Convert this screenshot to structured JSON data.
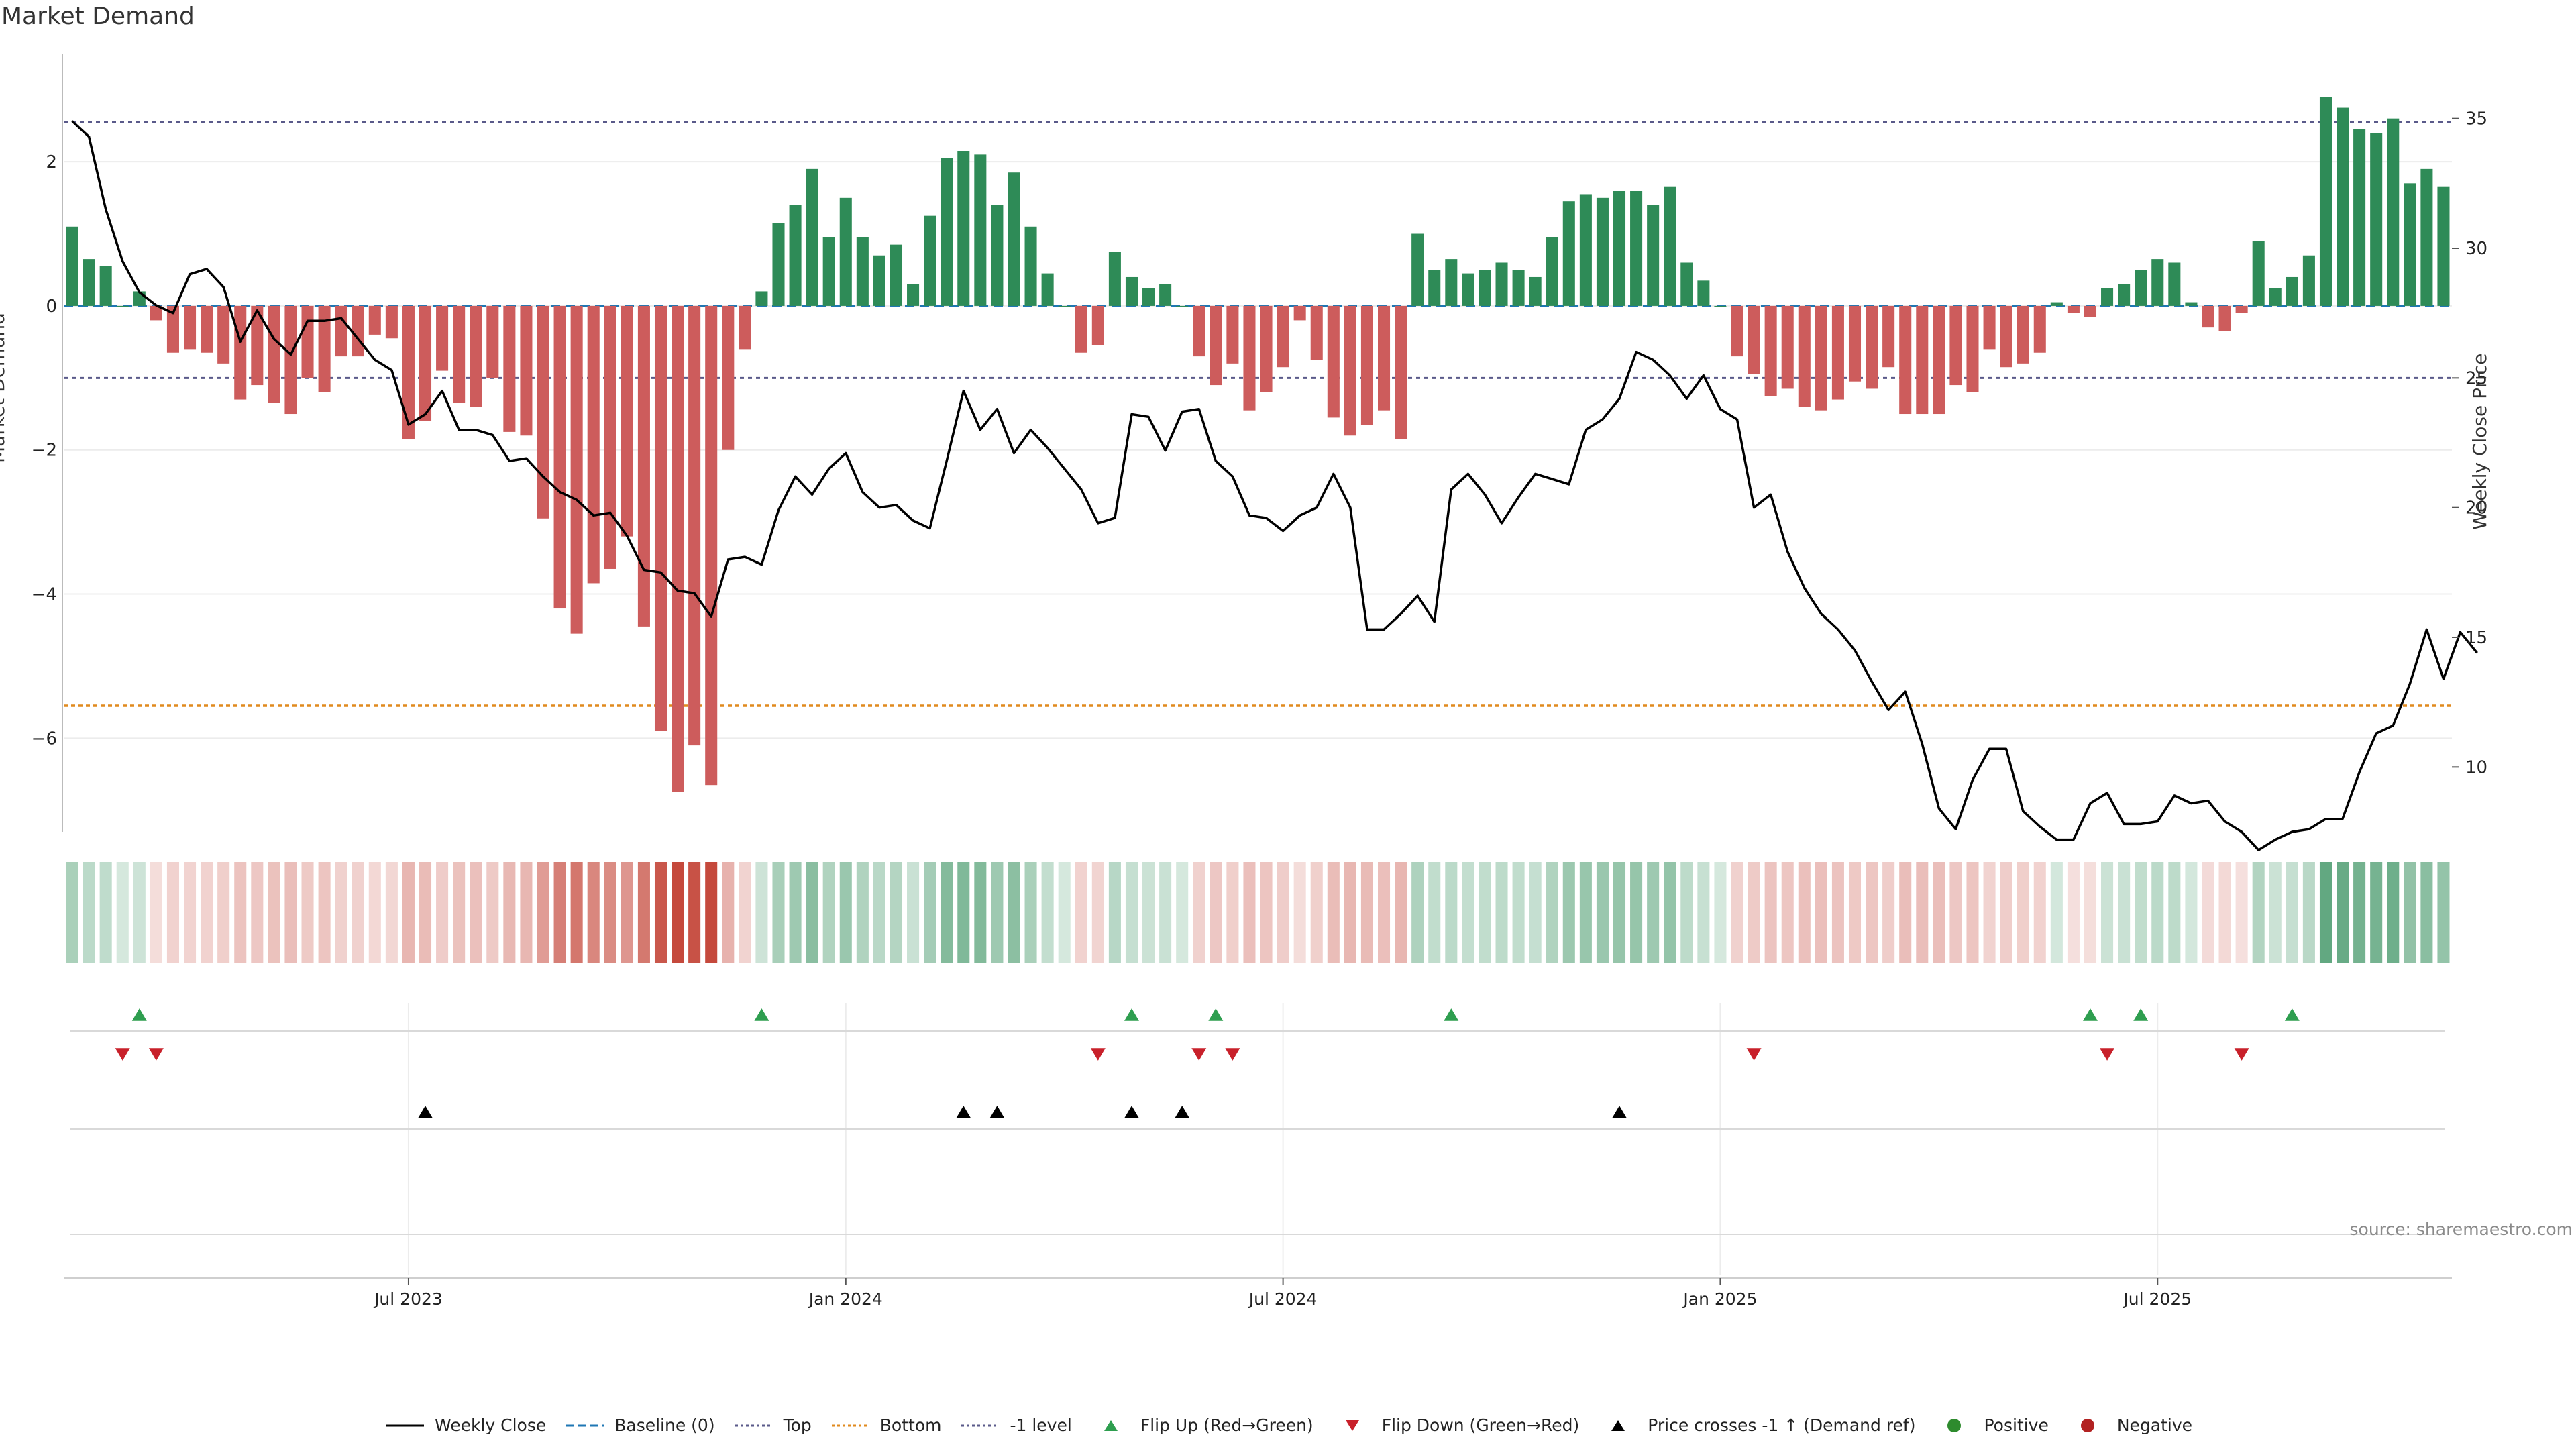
{
  "title": "Market Demand",
  "source_label": "source: sharemaestro.com",
  "colors": {
    "positive": "#2e8b57",
    "negative": "#cd5c5c",
    "line": "#000000",
    "top": "#5a5a8a",
    "bottom": "#e08a1e",
    "flip_up": "#2e9e4f",
    "flip_down": "#c8202a",
    "cross": "#000000"
  },
  "legend": [
    {
      "label": "Weekly Close",
      "kind": "line-solid",
      "color": "#000000"
    },
    {
      "label": "Baseline (0)",
      "kind": "line-dash",
      "color": "#1f77b4"
    },
    {
      "label": "Top",
      "kind": "line-dot",
      "color": "#5a5a8a"
    },
    {
      "label": "Bottom",
      "kind": "line-dot",
      "color": "#e08a1e"
    },
    {
      "label": "-1 level",
      "kind": "line-dot",
      "color": "#5a5a8a"
    },
    {
      "label": "Flip Up (Red→Green)",
      "kind": "tri-up",
      "color": "#2e9e4f"
    },
    {
      "label": "Flip Down (Green→Red)",
      "kind": "tri-down",
      "color": "#c8202a"
    },
    {
      "label": "Price crosses -1 ↑ (Demand ref)",
      "kind": "tri-up",
      "color": "#000000"
    },
    {
      "label": "Positive",
      "kind": "dot",
      "color": "#2e8b2e"
    },
    {
      "label": "Negative",
      "kind": "dot",
      "color": "#b22222"
    }
  ],
  "chart_data": {
    "type": "bar",
    "title": "Market Demand",
    "ylabel": "Market Demand",
    "y2label": "Weekly Close Price",
    "ylim": [
      -7.3,
      3.5
    ],
    "y2lim": [
      7.5,
      37.5
    ],
    "yticks": [
      2,
      0,
      -2,
      -4,
      -6
    ],
    "y2ticks": [
      35,
      30,
      25,
      20,
      15,
      10
    ],
    "x_tick_labels": [
      "Jul 2023",
      "Jan 2024",
      "Jul 2024",
      "Jan 2025",
      "Jul 2025"
    ],
    "x_tick_index": [
      20.5,
      46.5,
      72.5,
      98.5,
      124.5
    ],
    "reference_lines": {
      "baseline": 0,
      "top": 2.55,
      "bottom": -5.55,
      "minus_one": -1
    },
    "demand": [
      1.1,
      0.65,
      0.55,
      0.0,
      0.2,
      -0.2,
      -0.65,
      -0.6,
      -0.65,
      -0.8,
      -1.3,
      -1.1,
      -1.35,
      -1.5,
      -1.0,
      -1.2,
      -0.7,
      -0.7,
      -0.4,
      -0.45,
      -1.85,
      -1.6,
      -0.9,
      -1.35,
      -1.4,
      -1.0,
      -1.75,
      -1.8,
      -2.95,
      -4.2,
      -4.55,
      -3.85,
      -3.65,
      -3.2,
      -4.45,
      -5.9,
      -6.75,
      -6.1,
      -6.65,
      -2.0,
      -0.6,
      0.2,
      1.15,
      1.4,
      1.9,
      0.95,
      1.5,
      0.95,
      0.7,
      0.85,
      0.3,
      1.25,
      2.05,
      2.15,
      2.1,
      1.4,
      1.85,
      1.1,
      0.45,
      0.0,
      -0.65,
      -0.55,
      0.75,
      0.4,
      0.25,
      0.3,
      0.0,
      -0.7,
      -1.1,
      -0.8,
      -1.45,
      -1.2,
      -0.85,
      -0.2,
      -0.75,
      -1.55,
      -1.8,
      -1.65,
      -1.45,
      -1.85,
      1.0,
      0.5,
      0.65,
      0.45,
      0.5,
      0.6,
      0.5,
      0.4,
      0.95,
      1.45,
      1.55,
      1.5,
      1.6,
      1.6,
      1.4,
      1.65,
      0.6,
      0.35,
      0.0,
      -0.7,
      -0.95,
      -1.25,
      -1.15,
      -1.4,
      -1.45,
      -1.3,
      -1.05,
      -1.15,
      -0.85,
      -1.5,
      -1.5,
      -1.5,
      -1.1,
      -1.2,
      -0.6,
      -0.85,
      -0.8,
      -0.65,
      0.05,
      -0.1,
      -0.15,
      0.25,
      0.3,
      0.5,
      0.65,
      0.6,
      0.05,
      -0.3,
      -0.35,
      -0.1,
      0.9,
      0.25,
      0.4,
      0.7,
      2.9,
      2.75,
      2.45,
      2.4,
      2.6,
      1.7,
      1.9,
      1.65
    ],
    "weekly_close": [
      34.9,
      34.3,
      31.5,
      29.5,
      28.3,
      27.8,
      27.5,
      29.0,
      29.2,
      28.5,
      26.4,
      27.6,
      26.5,
      25.9,
      27.2,
      27.2,
      27.3,
      26.5,
      25.7,
      25.3,
      23.2,
      23.6,
      24.5,
      23.0,
      23.0,
      22.8,
      21.8,
      21.9,
      21.2,
      20.6,
      20.3,
      19.7,
      19.8,
      18.9,
      17.6,
      17.5,
      16.8,
      16.7,
      15.8,
      18.0,
      18.1,
      17.8,
      19.9,
      21.2,
      20.5,
      21.5,
      22.1,
      20.6,
      20.0,
      20.1,
      19.5,
      19.2,
      21.8,
      24.5,
      23.0,
      23.8,
      22.1,
      23.0,
      22.3,
      21.5,
      20.7,
      19.4,
      19.6,
      23.6,
      23.5,
      22.2,
      23.7,
      23.8,
      21.8,
      21.2,
      19.7,
      19.6,
      19.1,
      19.7,
      20.0,
      21.3,
      20.0,
      15.3,
      15.3,
      15.9,
      16.6,
      15.6,
      20.7,
      21.3,
      20.5,
      19.4,
      20.4,
      21.3,
      21.1,
      20.9,
      23.0,
      23.4,
      24.2,
      26.0,
      25.7,
      25.1,
      24.2,
      25.1,
      23.8,
      23.4,
      20.0,
      20.5,
      18.3,
      16.9,
      15.9,
      15.3,
      14.5,
      13.3,
      12.2,
      12.9,
      10.9,
      8.4,
      7.6,
      9.5,
      10.7,
      10.7,
      8.3,
      7.7,
      7.2,
      7.2,
      8.6,
      9.0,
      7.8,
      7.8,
      7.9,
      8.9,
      8.6,
      8.7,
      7.9,
      7.5,
      6.8,
      7.2,
      7.5,
      7.6,
      8.0,
      8.0,
      9.8,
      11.3,
      11.6,
      13.2,
      15.3,
      13.4,
      15.2,
      14.4
    ],
    "flip_up_index": [
      4,
      41,
      63,
      68,
      82,
      120,
      123,
      132
    ],
    "flip_down_index": [
      3,
      5,
      61,
      67,
      69,
      100,
      121,
      129
    ],
    "cross_up_index": [
      21,
      53,
      55,
      63,
      66,
      92
    ]
  }
}
